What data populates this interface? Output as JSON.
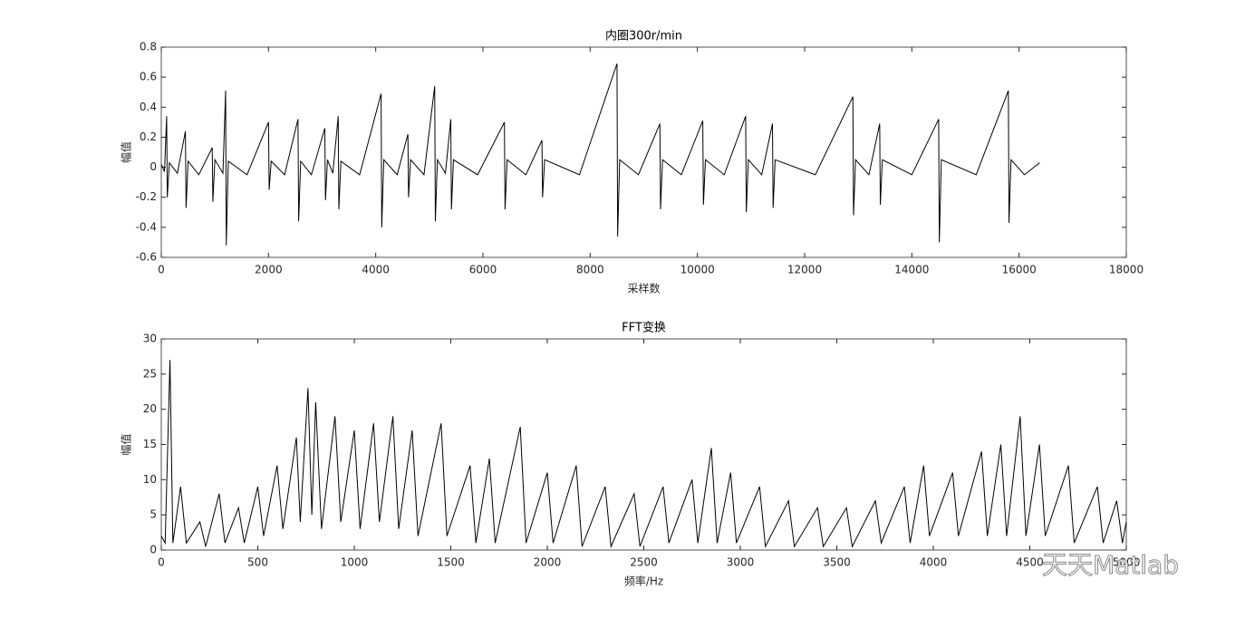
{
  "chart_data": [
    {
      "type": "line",
      "title": "内圈300r/min",
      "xlabel": "采样数",
      "ylabel": "幅值",
      "color": "#000000",
      "x": [
        0,
        60,
        100,
        112,
        150,
        300,
        450,
        462,
        500,
        700,
        950,
        962,
        1000,
        1150,
        1200,
        1212,
        1250,
        1600,
        2000,
        2012,
        2050,
        2300,
        2550,
        2562,
        2600,
        2800,
        3050,
        3062,
        3100,
        3200,
        3300,
        3312,
        3350,
        3700,
        4100,
        4112,
        4150,
        4400,
        4600,
        4612,
        4650,
        4900,
        5100,
        5112,
        5150,
        5300,
        5400,
        5412,
        5450,
        5900,
        6400,
        6412,
        6450,
        6800,
        7100,
        7112,
        7150,
        7800,
        8500,
        8512,
        8550,
        8900,
        9300,
        9312,
        9350,
        9700,
        10100,
        10112,
        10150,
        10500,
        10900,
        10912,
        10950,
        11200,
        11400,
        11412,
        11450,
        12200,
        12900,
        12912,
        12950,
        13200,
        13400,
        13412,
        13450,
        14000,
        14500,
        14512,
        14550,
        15200,
        15800,
        15812,
        15850,
        16100,
        16384
      ],
      "values": [
        0.02,
        -0.03,
        0.34,
        -0.2,
        0.03,
        -0.04,
        0.24,
        -0.27,
        0.04,
        -0.05,
        0.13,
        -0.23,
        0.05,
        -0.04,
        0.51,
        -0.52,
        0.04,
        -0.05,
        0.3,
        -0.15,
        0.04,
        -0.05,
        0.32,
        -0.36,
        0.04,
        -0.05,
        0.26,
        -0.22,
        0.05,
        -0.04,
        0.34,
        -0.28,
        0.04,
        -0.05,
        0.49,
        -0.4,
        0.05,
        -0.05,
        0.22,
        -0.2,
        0.05,
        -0.05,
        0.54,
        -0.36,
        0.05,
        -0.04,
        0.32,
        -0.28,
        0.05,
        -0.05,
        0.3,
        -0.28,
        0.05,
        -0.05,
        0.18,
        -0.2,
        0.05,
        -0.05,
        0.69,
        -0.46,
        0.05,
        -0.05,
        0.29,
        -0.28,
        0.05,
        -0.05,
        0.31,
        -0.25,
        0.05,
        -0.05,
        0.34,
        -0.3,
        0.05,
        -0.05,
        0.29,
        -0.27,
        0.05,
        -0.05,
        0.47,
        -0.32,
        0.05,
        -0.05,
        0.29,
        -0.25,
        0.05,
        -0.05,
        0.32,
        -0.5,
        0.05,
        -0.05,
        0.51,
        -0.37,
        0.05,
        -0.05,
        0.03
      ],
      "xlim": [
        0,
        18000
      ],
      "xticks": [
        0,
        2000,
        4000,
        6000,
        8000,
        10000,
        12000,
        14000,
        16000,
        18000
      ],
      "ylim": [
        -0.6,
        0.8
      ],
      "yticks": [
        -0.6,
        -0.4,
        -0.2,
        0,
        0.2,
        0.4,
        0.6,
        0.8
      ]
    },
    {
      "type": "line",
      "title": "FFT变换",
      "xlabel": "频率/Hz",
      "ylabel": "幅值",
      "color": "#000000",
      "x": [
        0,
        20,
        45,
        60,
        100,
        130,
        200,
        230,
        300,
        330,
        400,
        430,
        500,
        530,
        600,
        630,
        700,
        720,
        760,
        780,
        800,
        830,
        900,
        930,
        1000,
        1030,
        1100,
        1130,
        1200,
        1230,
        1300,
        1330,
        1450,
        1480,
        1600,
        1630,
        1700,
        1730,
        1860,
        1890,
        2000,
        2030,
        2150,
        2180,
        2300,
        2330,
        2450,
        2480,
        2600,
        2630,
        2750,
        2780,
        2850,
        2880,
        2950,
        2980,
        3100,
        3130,
        3250,
        3280,
        3400,
        3430,
        3550,
        3580,
        3700,
        3730,
        3850,
        3880,
        3950,
        3980,
        4100,
        4130,
        4250,
        4280,
        4350,
        4380,
        4450,
        4480,
        4550,
        4580,
        4700,
        4730,
        4850,
        4880,
        4950,
        4980,
        5000
      ],
      "values": [
        2,
        1,
        27,
        1,
        9,
        1,
        4,
        0.5,
        8,
        1,
        6,
        1,
        9,
        2,
        12,
        3,
        16,
        4,
        23,
        5,
        21,
        3,
        19,
        4,
        17,
        3,
        18,
        4,
        19,
        3,
        17,
        2,
        18,
        2,
        12,
        1,
        13,
        1,
        17.5,
        1,
        11,
        1,
        12,
        0.5,
        9,
        0.5,
        8,
        0.5,
        9,
        1,
        10,
        1,
        14.5,
        1,
        11,
        1,
        9,
        0.5,
        7,
        0.5,
        6,
        0.5,
        6,
        0.5,
        7,
        1,
        9,
        1,
        12,
        2,
        11,
        2,
        14,
        2,
        15,
        2,
        19,
        2,
        15,
        2,
        12,
        1,
        9,
        1,
        7,
        1,
        4
      ],
      "xlim": [
        0,
        5000
      ],
      "xticks": [
        0,
        500,
        1000,
        1500,
        2000,
        2500,
        3000,
        3500,
        4000,
        4500,
        5000
      ],
      "ylim": [
        0,
        30
      ],
      "yticks": [
        0,
        5,
        10,
        15,
        20,
        25,
        30
      ]
    }
  ],
  "watermark": "天天Matlab"
}
